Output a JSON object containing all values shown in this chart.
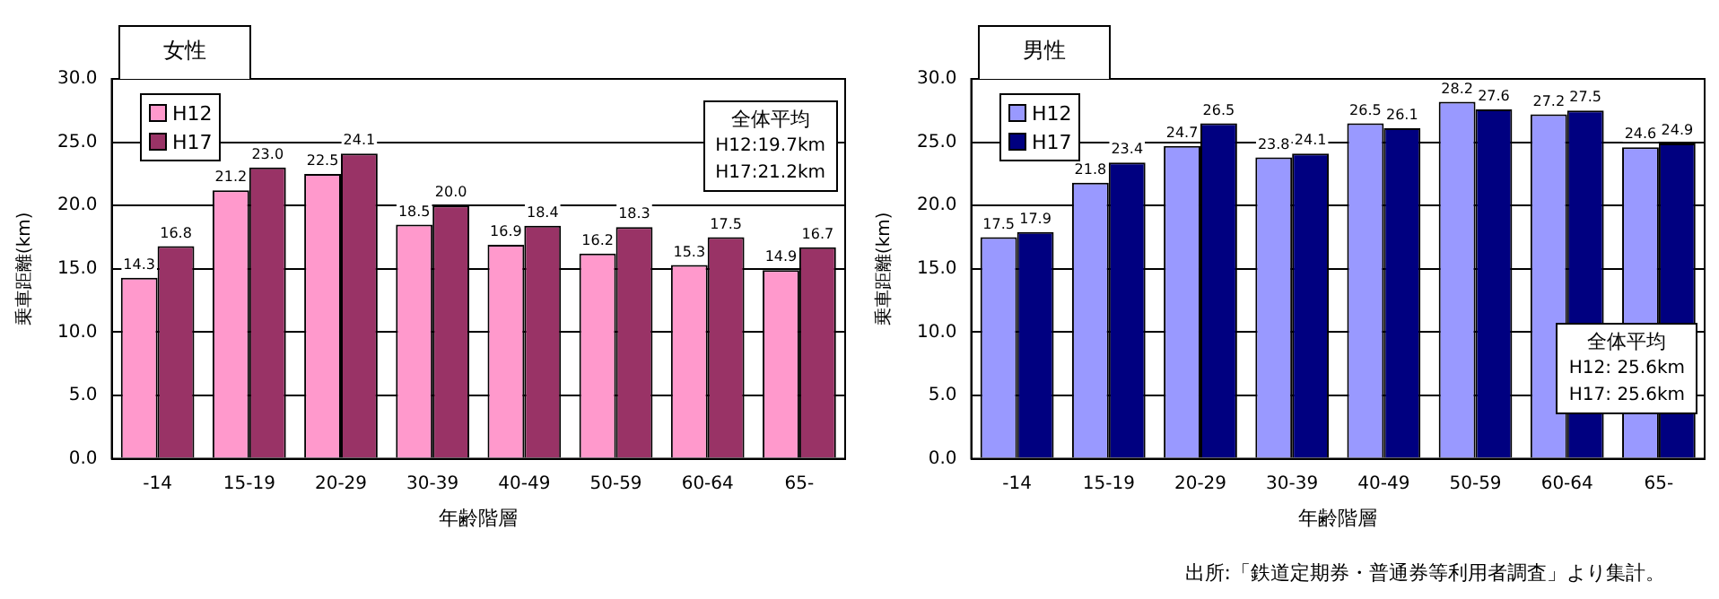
{
  "chart_data": [
    {
      "type": "bar",
      "title": "女性",
      "xlabel": "年齢階層",
      "ylabel": "乗車距離(km)",
      "categories": [
        "-14",
        "15-19",
        "20-29",
        "30-39",
        "40-49",
        "50-59",
        "60-64",
        "65-"
      ],
      "series": [
        {
          "name": "H12",
          "color": "#ff99cc",
          "values": [
            14.3,
            21.2,
            22.5,
            18.5,
            16.9,
            16.2,
            15.3,
            14.9
          ],
          "value_labels": [
            "14.3",
            "21.2",
            "22.5",
            "18.5",
            "16.9",
            "16.2",
            "15.3",
            "14.9"
          ]
        },
        {
          "name": "H17",
          "color": "#993366",
          "values": [
            16.8,
            23.0,
            24.1,
            20.0,
            18.4,
            18.3,
            17.5,
            16.7
          ],
          "value_labels": [
            "16.8",
            "23.0",
            "24.1",
            "20.0",
            "18.4",
            "18.3",
            "17.5",
            "16.7"
          ]
        }
      ],
      "ylim": [
        0,
        30
      ],
      "yticks": [
        {
          "value": 0,
          "label": "0.0"
        },
        {
          "value": 5,
          "label": "5.0"
        },
        {
          "value": 10,
          "label": "10.0"
        },
        {
          "value": 15,
          "label": "15.0"
        },
        {
          "value": 20,
          "label": "20.0"
        },
        {
          "value": 25,
          "label": "25.0"
        },
        {
          "value": 30,
          "label": "30.0"
        }
      ],
      "grid": "y",
      "legend": "top left",
      "annotations": [
        "全体平均",
        "H12:19.7km",
        "H17:21.2km"
      ]
    },
    {
      "type": "bar",
      "title": "男性",
      "xlabel": "年齢階層",
      "ylabel": "乗車距離(km)",
      "categories": [
        "-14",
        "15-19",
        "20-29",
        "30-39",
        "40-49",
        "50-59",
        "60-64",
        "65-"
      ],
      "series": [
        {
          "name": "H12",
          "color": "#9999ff",
          "values": [
            17.5,
            21.8,
            24.7,
            23.8,
            26.5,
            28.2,
            27.2,
            24.6
          ],
          "value_labels": [
            "17.5",
            "21.8",
            "24.7",
            "23.8",
            "26.5",
            "28.2",
            "27.2",
            "24.6"
          ]
        },
        {
          "name": "H17",
          "color": "#000080",
          "values": [
            17.9,
            23.4,
            26.5,
            24.1,
            26.1,
            27.6,
            27.5,
            24.9
          ],
          "value_labels": [
            "17.9",
            "23.4",
            "26.5",
            "24.1",
            "26.1",
            "27.6",
            "27.5",
            "24.9"
          ]
        }
      ],
      "ylim": [
        0,
        30
      ],
      "yticks": [
        {
          "value": 0,
          "label": "0.0"
        },
        {
          "value": 5,
          "label": "5.0"
        },
        {
          "value": 10,
          "label": "10.0"
        },
        {
          "value": 15,
          "label": "15.0"
        },
        {
          "value": 20,
          "label": "20.0"
        },
        {
          "value": 25,
          "label": "25.0"
        },
        {
          "value": 30,
          "label": "30.0"
        }
      ],
      "grid": "y",
      "legend": "top left",
      "annotations": [
        "全体平均",
        "H12: 25.6km",
        "H17: 25.6km",
        "出所:「鉄道定期券・普通券等利用者調査」より集計。"
      ]
    }
  ]
}
